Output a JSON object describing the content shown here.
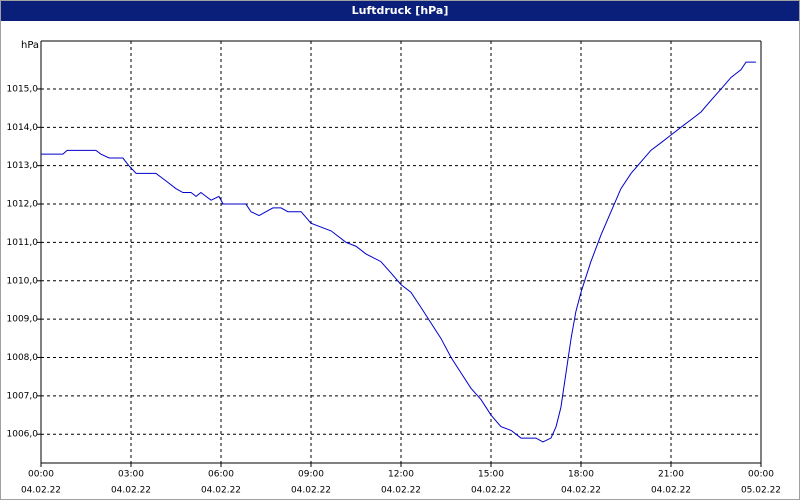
{
  "window_title": "Luftdruck [hPa]",
  "chart_data": {
    "type": "line",
    "y_label": "hPa",
    "x": [
      0,
      0.73,
      0.87,
      1.83,
      2,
      2.27,
      2.73,
      2.93,
      3.17,
      3.83,
      4.17,
      4.5,
      4.73,
      5,
      5.17,
      5.33,
      5.5,
      5.67,
      5.93,
      6.07,
      6.83,
      7,
      7.27,
      7.5,
      7.73,
      8,
      8.23,
      8.67,
      9,
      9.33,
      9.67,
      10.17,
      10.5,
      10.83,
      11.33,
      11.67,
      12,
      12.33,
      12.67,
      13,
      13.33,
      13.67,
      14,
      14.33,
      14.67,
      15,
      15.33,
      15.67,
      16,
      16.5,
      16.73,
      17,
      17.17,
      17.33,
      17.5,
      17.67,
      17.83,
      18,
      18.33,
      18.67,
      19,
      19.33,
      19.67,
      20,
      20.33,
      20.67,
      21,
      21.33,
      21.67,
      22,
      22.33,
      22.67,
      23,
      23.33,
      23.5,
      23.83
    ],
    "series": [
      {
        "color": "#0000cc",
        "values": [
          1013.3,
          1013.3,
          1013.4,
          1013.4,
          1013.3,
          1013.2,
          1013.2,
          1013.0,
          1012.8,
          1012.8,
          1012.6,
          1012.4,
          1012.3,
          1012.3,
          1012.2,
          1012.3,
          1012.2,
          1012.1,
          1012.2,
          1012.0,
          1012.0,
          1011.8,
          1011.7,
          1011.8,
          1011.9,
          1011.9,
          1011.8,
          1011.8,
          1011.5,
          1011.4,
          1011.3,
          1011.0,
          1010.9,
          1010.7,
          1010.5,
          1010.2,
          1009.9,
          1009.7,
          1009.3,
          1008.9,
          1008.5,
          1008.0,
          1007.6,
          1007.2,
          1006.9,
          1006.5,
          1006.2,
          1006.1,
          1005.9,
          1005.9,
          1005.8,
          1005.9,
          1006.2,
          1006.7,
          1007.6,
          1008.5,
          1009.2,
          1009.7,
          1010.5,
          1011.2,
          1011.8,
          1012.4,
          1012.8,
          1013.1,
          1013.4,
          1013.6,
          1013.8,
          1014.0,
          1014.2,
          1014.4,
          1014.7,
          1015.0,
          1015.3,
          1015.5,
          1015.7,
          1015.7
        ]
      }
    ],
    "xlim": [
      0,
      24
    ],
    "xticks": [
      {
        "value": 0,
        "label": "00:00"
      },
      {
        "value": 3,
        "label": "03:00"
      },
      {
        "value": 6,
        "label": "06:00"
      },
      {
        "value": 9,
        "label": "09:00"
      },
      {
        "value": 12,
        "label": "12:00"
      },
      {
        "value": 15,
        "label": "15:00"
      },
      {
        "value": 18,
        "label": "18:00"
      },
      {
        "value": 21,
        "label": "21:00"
      },
      {
        "value": 24,
        "label": "00:00"
      }
    ],
    "xtick_dates": [
      "04.02.22",
      "04.02.22",
      "04.02.22",
      "04.02.22",
      "04.02.22",
      "04.02.22",
      "04.02.22",
      "04.02.22",
      "05.02.22"
    ],
    "ylim": [
      1005.25,
      1016.25
    ],
    "yticks": [
      {
        "value": 1006,
        "label": "1006,0"
      },
      {
        "value": 1007,
        "label": "1007,0"
      },
      {
        "value": 1008,
        "label": "1008,0"
      },
      {
        "value": 1009,
        "label": "1009,0"
      },
      {
        "value": 1010,
        "label": "1010,0"
      },
      {
        "value": 1011,
        "label": "1011,0"
      },
      {
        "value": 1012,
        "label": "1012,0"
      },
      {
        "value": 1013,
        "label": "1013,0"
      },
      {
        "value": 1014,
        "label": "1014,0"
      },
      {
        "value": 1015,
        "label": "1015,0"
      }
    ],
    "grid": true
  }
}
